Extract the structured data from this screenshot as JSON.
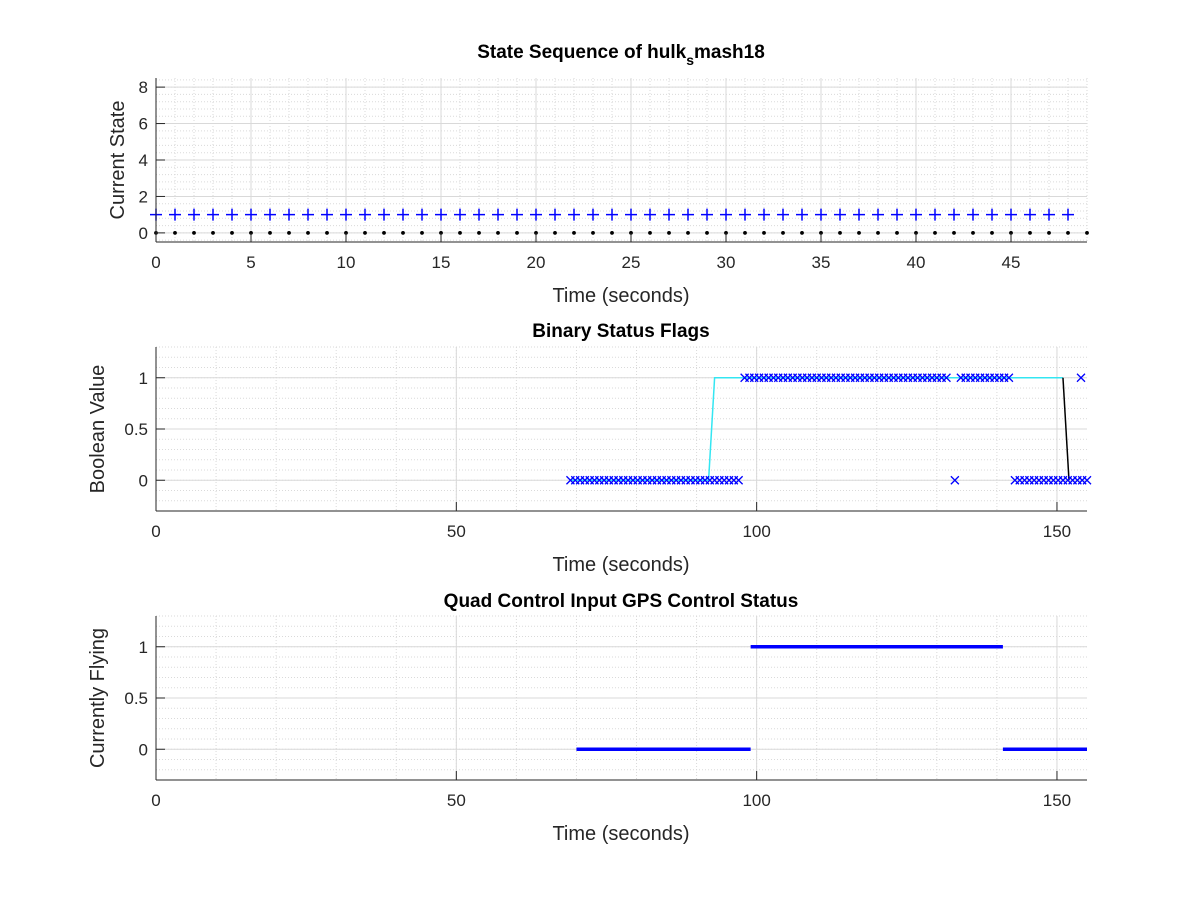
{
  "chart_data": [
    {
      "type": "scatter",
      "title": "State Sequence of hulk",
      "title_subscript": "s",
      "title_suffix": "mash18",
      "xlabel": "Time (seconds)",
      "ylabel": "Current State",
      "xlim": [
        0,
        49
      ],
      "ylim": [
        -0.5,
        8.5
      ],
      "xticks": [
        0,
        5,
        10,
        15,
        20,
        25,
        30,
        35,
        40,
        45
      ],
      "yticks": [
        0,
        2,
        4,
        6,
        8
      ],
      "grid": "on",
      "minor_grid": "on",
      "series": [
        {
          "marker": "plus",
          "color": "#0000ff",
          "x_start": 0,
          "x_end": 48,
          "x_step": 1,
          "y": 1
        },
        {
          "marker": "dot",
          "color": "#000000",
          "x_start": 0,
          "x_end": 49,
          "x_step": 1,
          "y": 0
        }
      ]
    },
    {
      "type": "line",
      "title": "Binary Status Flags",
      "xlabel": "Time (seconds)",
      "ylabel": "Boolean Value",
      "xlim": [
        0,
        155
      ],
      "ylim": [
        -0.3,
        1.3
      ],
      "xticks": [
        0,
        50,
        100,
        150
      ],
      "yticks": [
        0,
        0.5,
        1
      ],
      "grid": "on",
      "minor_grid": "on",
      "series": [
        {
          "style": "line",
          "color": "#33e6f2",
          "x": [
            69,
            92,
            93,
            151
          ],
          "y": [
            0,
            0,
            1,
            1
          ]
        },
        {
          "style": "line",
          "color": "#000000",
          "x": [
            151,
            152
          ],
          "y": [
            1,
            0
          ]
        },
        {
          "style": "markers",
          "marker": "x",
          "color": "#0000ff",
          "ranges": [
            {
              "x_start": 69,
              "x_end": 97,
              "x_step": 0.8,
              "y": 0
            },
            {
              "x_start": 98,
              "x_end": 132,
              "x_step": 0.8,
              "y": 1
            },
            {
              "x_start": 134,
              "x_end": 142,
              "x_step": 0.8,
              "y": 1
            },
            {
              "x_start": 143,
              "x_end": 155,
              "x_step": 0.8,
              "y": 0
            }
          ],
          "points": [
            {
              "x": 133,
              "y": 0
            },
            {
              "x": 154,
              "y": 1
            }
          ]
        }
      ]
    },
    {
      "type": "line",
      "title": "Quad Control Input GPS Control Status",
      "xlabel": "Time (seconds)",
      "ylabel": "Currently Flying",
      "xlim": [
        0,
        155
      ],
      "ylim": [
        -0.3,
        1.3
      ],
      "xticks": [
        0,
        50,
        100,
        150
      ],
      "yticks": [
        0,
        0.5,
        1
      ],
      "grid": "on",
      "minor_grid": "on",
      "series": [
        {
          "style": "segments",
          "color": "#0000ff",
          "segments": [
            {
              "x": [
                70,
                99
              ],
              "y": 0
            },
            {
              "x": [
                99,
                141
              ],
              "y": 1
            },
            {
              "x": [
                141,
                155
              ],
              "y": 0
            }
          ]
        }
      ]
    }
  ]
}
